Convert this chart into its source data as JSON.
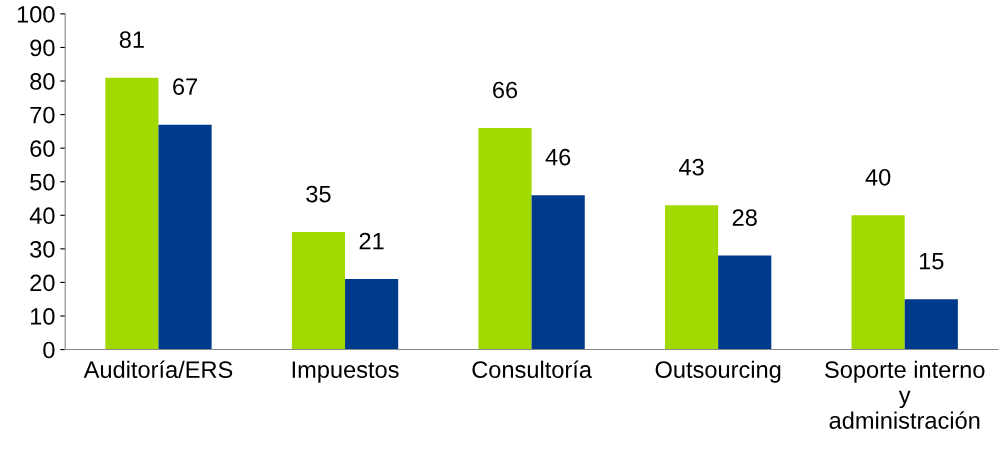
{
  "chart_data": {
    "type": "bar",
    "categories": [
      "Auditoría/ERS",
      "Impuestos",
      "Consultoría",
      "Outsourcing",
      "Soporte interno\ny\nadministración"
    ],
    "series": [
      {
        "color": "#a2d900",
        "values": [
          81,
          35,
          66,
          43,
          40
        ]
      },
      {
        "color": "#003a8a",
        "values": [
          67,
          21,
          46,
          28,
          15
        ]
      }
    ],
    "ylim": [
      0,
      100
    ],
    "yticks": [
      0,
      10,
      20,
      30,
      40,
      50,
      60,
      70,
      80,
      90,
      100
    ],
    "data_labels": true,
    "grid": false,
    "legend": false
  }
}
